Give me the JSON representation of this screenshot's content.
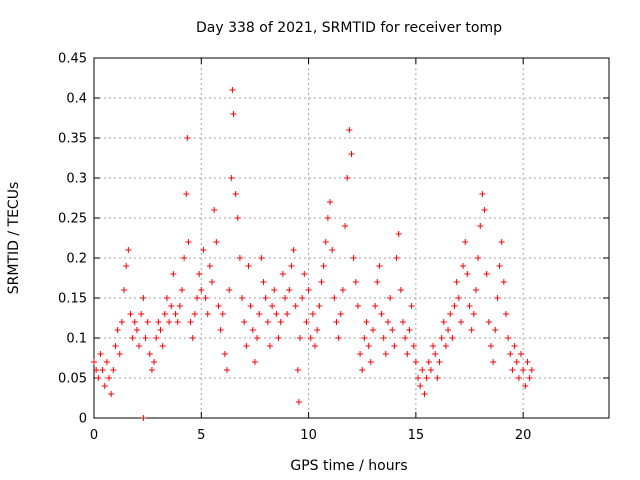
{
  "chart_data": {
    "type": "scatter",
    "title": "Day 338 of 2021, SRMTID for receiver tomp",
    "xlabel": "GPS time / hours",
    "ylabel": "SRMTID / TECUs",
    "xlim": [
      0,
      24
    ],
    "ylim": [
      0,
      0.45
    ],
    "xticks": [
      "0",
      "5",
      "10",
      "15",
      "20"
    ],
    "xtick_values": [
      0,
      5,
      10,
      15,
      20
    ],
    "yticks": [
      "0",
      "0.05",
      "0.1",
      "0.15",
      "0.2",
      "0.25",
      "0.3",
      "0.35",
      "0.4",
      "0.45"
    ],
    "ytick_values": [
      0,
      0.05,
      0.1,
      0.15,
      0.2,
      0.25,
      0.3,
      0.35,
      0.4,
      0.45
    ],
    "grid": true,
    "marker": "plus",
    "color": "#ff0000",
    "series": [
      {
        "name": "SRMTID",
        "points": [
          [
            0.0,
            0.07
          ],
          [
            0.1,
            0.06
          ],
          [
            0.2,
            0.05
          ],
          [
            0.3,
            0.08
          ],
          [
            0.4,
            0.06
          ],
          [
            0.5,
            0.04
          ],
          [
            0.6,
            0.07
          ],
          [
            0.7,
            0.05
          ],
          [
            0.8,
            0.03
          ],
          [
            0.9,
            0.06
          ],
          [
            1.0,
            0.09
          ],
          [
            1.1,
            0.11
          ],
          [
            1.2,
            0.08
          ],
          [
            1.3,
            0.12
          ],
          [
            1.4,
            0.16
          ],
          [
            1.5,
            0.19
          ],
          [
            1.6,
            0.21
          ],
          [
            1.7,
            0.13
          ],
          [
            1.8,
            0.1
          ],
          [
            1.9,
            0.12
          ],
          [
            2.0,
            0.11
          ],
          [
            2.1,
            0.09
          ],
          [
            2.2,
            0.13
          ],
          [
            2.3,
            0.15
          ],
          [
            2.4,
            0.1
          ],
          [
            2.5,
            0.12
          ],
          [
            2.6,
            0.08
          ],
          [
            2.7,
            0.06
          ],
          [
            2.8,
            0.07
          ],
          [
            2.9,
            0.1
          ],
          [
            3.0,
            0.12
          ],
          [
            3.1,
            0.11
          ],
          [
            3.2,
            0.09
          ],
          [
            3.3,
            0.13
          ],
          [
            3.4,
            0.15
          ],
          [
            3.5,
            0.12
          ],
          [
            3.6,
            0.14
          ],
          [
            3.7,
            0.18
          ],
          [
            3.8,
            0.13
          ],
          [
            3.9,
            0.12
          ],
          [
            4.0,
            0.14
          ],
          [
            4.1,
            0.16
          ],
          [
            4.2,
            0.2
          ],
          [
            4.3,
            0.28
          ],
          [
            4.35,
            0.35
          ],
          [
            4.4,
            0.22
          ],
          [
            4.5,
            0.12
          ],
          [
            4.6,
            0.1
          ],
          [
            4.7,
            0.13
          ],
          [
            4.8,
            0.15
          ],
          [
            4.9,
            0.18
          ],
          [
            5.0,
            0.16
          ],
          [
            5.1,
            0.21
          ],
          [
            5.2,
            0.15
          ],
          [
            5.3,
            0.13
          ],
          [
            5.4,
            0.19
          ],
          [
            5.5,
            0.17
          ],
          [
            5.6,
            0.26
          ],
          [
            5.7,
            0.22
          ],
          [
            5.8,
            0.14
          ],
          [
            5.9,
            0.11
          ],
          [
            6.0,
            0.13
          ],
          [
            6.1,
            0.08
          ],
          [
            6.2,
            0.06
          ],
          [
            6.3,
            0.16
          ],
          [
            6.4,
            0.3
          ],
          [
            6.45,
            0.41
          ],
          [
            6.5,
            0.38
          ],
          [
            6.6,
            0.28
          ],
          [
            6.7,
            0.25
          ],
          [
            6.8,
            0.2
          ],
          [
            6.9,
            0.15
          ],
          [
            7.0,
            0.12
          ],
          [
            7.1,
            0.09
          ],
          [
            7.2,
            0.19
          ],
          [
            7.3,
            0.14
          ],
          [
            7.4,
            0.11
          ],
          [
            7.5,
            0.07
          ],
          [
            7.6,
            0.1
          ],
          [
            7.7,
            0.13
          ],
          [
            7.8,
            0.2
          ],
          [
            7.9,
            0.17
          ],
          [
            8.0,
            0.15
          ],
          [
            8.1,
            0.12
          ],
          [
            8.2,
            0.09
          ],
          [
            8.3,
            0.14
          ],
          [
            8.4,
            0.16
          ],
          [
            8.5,
            0.13
          ],
          [
            8.6,
            0.1
          ],
          [
            8.7,
            0.12
          ],
          [
            8.8,
            0.18
          ],
          [
            8.9,
            0.15
          ],
          [
            9.0,
            0.13
          ],
          [
            9.1,
            0.16
          ],
          [
            9.2,
            0.19
          ],
          [
            9.3,
            0.21
          ],
          [
            9.4,
            0.14
          ],
          [
            9.5,
            0.06
          ],
          [
            9.55,
            0.02
          ],
          [
            9.6,
            0.1
          ],
          [
            9.7,
            0.15
          ],
          [
            9.8,
            0.18
          ],
          [
            9.9,
            0.12
          ],
          [
            10.0,
            0.16
          ],
          [
            10.1,
            0.1
          ],
          [
            10.2,
            0.13
          ],
          [
            10.3,
            0.09
          ],
          [
            10.4,
            0.11
          ],
          [
            10.5,
            0.14
          ],
          [
            10.6,
            0.17
          ],
          [
            10.7,
            0.19
          ],
          [
            10.8,
            0.22
          ],
          [
            10.9,
            0.25
          ],
          [
            11.0,
            0.27
          ],
          [
            11.1,
            0.21
          ],
          [
            11.2,
            0.15
          ],
          [
            11.3,
            0.12
          ],
          [
            11.4,
            0.1
          ],
          [
            11.5,
            0.13
          ],
          [
            11.6,
            0.16
          ],
          [
            11.7,
            0.24
          ],
          [
            11.8,
            0.3
          ],
          [
            11.9,
            0.36
          ],
          [
            12.0,
            0.33
          ],
          [
            12.1,
            0.2
          ],
          [
            12.2,
            0.17
          ],
          [
            12.3,
            0.14
          ],
          [
            12.4,
            0.08
          ],
          [
            12.5,
            0.06
          ],
          [
            12.6,
            0.1
          ],
          [
            12.7,
            0.12
          ],
          [
            12.8,
            0.09
          ],
          [
            12.9,
            0.07
          ],
          [
            13.0,
            0.11
          ],
          [
            13.1,
            0.14
          ],
          [
            13.2,
            0.17
          ],
          [
            13.3,
            0.19
          ],
          [
            13.4,
            0.13
          ],
          [
            13.5,
            0.1
          ],
          [
            13.6,
            0.08
          ],
          [
            13.7,
            0.12
          ],
          [
            13.8,
            0.15
          ],
          [
            13.9,
            0.11
          ],
          [
            14.0,
            0.09
          ],
          [
            14.1,
            0.2
          ],
          [
            14.2,
            0.23
          ],
          [
            14.3,
            0.16
          ],
          [
            14.4,
            0.12
          ],
          [
            14.5,
            0.1
          ],
          [
            14.6,
            0.08
          ],
          [
            14.7,
            0.11
          ],
          [
            14.8,
            0.14
          ],
          [
            14.9,
            0.09
          ],
          [
            15.0,
            0.07
          ],
          [
            15.1,
            0.05
          ],
          [
            15.2,
            0.04
          ],
          [
            15.3,
            0.06
          ],
          [
            15.4,
            0.03
          ],
          [
            15.5,
            0.05
          ],
          [
            15.6,
            0.07
          ],
          [
            15.7,
            0.06
          ],
          [
            15.8,
            0.09
          ],
          [
            15.9,
            0.08
          ],
          [
            16.0,
            0.05
          ],
          [
            16.1,
            0.07
          ],
          [
            16.2,
            0.1
          ],
          [
            16.3,
            0.12
          ],
          [
            16.4,
            0.09
          ],
          [
            16.5,
            0.11
          ],
          [
            16.6,
            0.13
          ],
          [
            16.7,
            0.1
          ],
          [
            16.8,
            0.14
          ],
          [
            16.9,
            0.17
          ],
          [
            17.0,
            0.15
          ],
          [
            17.1,
            0.12
          ],
          [
            17.2,
            0.19
          ],
          [
            17.3,
            0.22
          ],
          [
            17.4,
            0.18
          ],
          [
            17.5,
            0.14
          ],
          [
            17.6,
            0.11
          ],
          [
            17.7,
            0.13
          ],
          [
            17.8,
            0.16
          ],
          [
            17.9,
            0.2
          ],
          [
            18.0,
            0.24
          ],
          [
            18.1,
            0.28
          ],
          [
            18.2,
            0.26
          ],
          [
            18.3,
            0.18
          ],
          [
            18.4,
            0.12
          ],
          [
            18.5,
            0.09
          ],
          [
            18.6,
            0.07
          ],
          [
            18.7,
            0.11
          ],
          [
            18.8,
            0.15
          ],
          [
            18.9,
            0.19
          ],
          [
            19.0,
            0.22
          ],
          [
            19.1,
            0.17
          ],
          [
            19.2,
            0.13
          ],
          [
            19.3,
            0.1
          ],
          [
            19.4,
            0.08
          ],
          [
            19.5,
            0.06
          ],
          [
            19.6,
            0.09
          ],
          [
            19.7,
            0.07
          ],
          [
            19.8,
            0.05
          ],
          [
            19.9,
            0.08
          ],
          [
            20.0,
            0.06
          ],
          [
            20.1,
            0.04
          ],
          [
            20.2,
            0.07
          ],
          [
            20.3,
            0.05
          ],
          [
            20.4,
            0.06
          ],
          [
            2.3,
            0.0
          ]
        ]
      }
    ]
  }
}
